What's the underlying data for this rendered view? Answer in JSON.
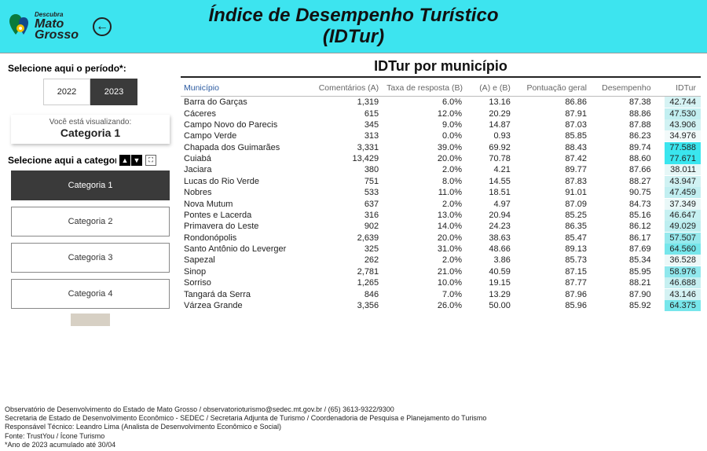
{
  "header": {
    "logo_small": "Descubra",
    "logo_l1": "Mato",
    "logo_l2": "Grosso",
    "title_l1": "Índice de Desempenho Turístico",
    "title_l2": "(IDTur)"
  },
  "sidebar": {
    "period_label": "Selecione aqui o período*:",
    "period_options": [
      "2022",
      "2023"
    ],
    "period_selected": "2023",
    "viewing_label": "Você está visualizando:",
    "viewing_value": "Categoria 1",
    "category_label": "Selecione aqui a categoria:",
    "categories": [
      "Categoria 1",
      "Categoria 2",
      "Categoria 3",
      "Categoria 4"
    ],
    "category_selected": "Categoria 1"
  },
  "table": {
    "title": "IDTur por município",
    "columns": [
      "Município",
      "Comentários (A)",
      "Taxa de resposta (B)",
      "(A) e (B)",
      "Pontuação geral",
      "Desempenho",
      "IDTur"
    ],
    "idtur_color_scale": {
      "min_color": "#e9f8f8",
      "max_color": "#39e6ef"
    },
    "rows": [
      {
        "mun": "Barra do Garças",
        "a": "1,319",
        "b": "6.0%",
        "ab": "13.16",
        "p": "86.86",
        "d": "87.38",
        "i": "42.744",
        "ic": "#d6f3f4"
      },
      {
        "mun": "Cáceres",
        "a": "615",
        "b": "12.0%",
        "ab": "20.29",
        "p": "87.91",
        "d": "88.86",
        "i": "47.530",
        "ic": "#c2eff1"
      },
      {
        "mun": "Campo Novo do Parecis",
        "a": "345",
        "b": "9.0%",
        "ab": "14.87",
        "p": "87.03",
        "d": "87.88",
        "i": "43.906",
        "ic": "#d1f2f3"
      },
      {
        "mun": "Campo Verde",
        "a": "313",
        "b": "0.0%",
        "ab": "0.93",
        "p": "85.85",
        "d": "86.23",
        "i": "34.976",
        "ic": "#f2fafa"
      },
      {
        "mun": "Chapada dos Guimarães",
        "a": "3,331",
        "b": "39.0%",
        "ab": "69.92",
        "p": "88.43",
        "d": "89.74",
        "i": "77.588",
        "ic": "#3be5ee"
      },
      {
        "mun": "Cuiabá",
        "a": "13,429",
        "b": "20.0%",
        "ab": "70.78",
        "p": "87.42",
        "d": "88.60",
        "i": "77.671",
        "ic": "#39e6ef"
      },
      {
        "mun": "Jaciara",
        "a": "380",
        "b": "2.0%",
        "ab": "4.21",
        "p": "89.77",
        "d": "87.66",
        "i": "38.011",
        "ic": "#e6f7f7"
      },
      {
        "mun": "Lucas do Rio Verde",
        "a": "751",
        "b": "8.0%",
        "ab": "14.55",
        "p": "87.83",
        "d": "88.27",
        "i": "43.947",
        "ic": "#d0f2f3"
      },
      {
        "mun": "Nobres",
        "a": "533",
        "b": "11.0%",
        "ab": "18.51",
        "p": "91.01",
        "d": "90.75",
        "i": "47.459",
        "ic": "#c2eff1"
      },
      {
        "mun": "Nova Mutum",
        "a": "637",
        "b": "2.0%",
        "ab": "4.97",
        "p": "87.09",
        "d": "84.73",
        "i": "37.349",
        "ic": "#e9f8f8"
      },
      {
        "mun": "Pontes e Lacerda",
        "a": "316",
        "b": "13.0%",
        "ab": "20.94",
        "p": "85.25",
        "d": "85.16",
        "i": "46.647",
        "ic": "#c6f0f1"
      },
      {
        "mun": "Primavera do Leste",
        "a": "902",
        "b": "14.0%",
        "ab": "24.23",
        "p": "86.35",
        "d": "86.12",
        "i": "49.029",
        "ic": "#bdeef0"
      },
      {
        "mun": "Rondonópolis",
        "a": "2,639",
        "b": "20.0%",
        "ab": "38.63",
        "p": "85.47",
        "d": "86.17",
        "i": "57.507",
        "ic": "#97e9ed"
      },
      {
        "mun": "Santo Antônio do Leverger",
        "a": "325",
        "b": "31.0%",
        "ab": "48.66",
        "p": "89.13",
        "d": "87.69",
        "i": "64.560",
        "ic": "#76e6eb"
      },
      {
        "mun": "Sapezal",
        "a": "262",
        "b": "2.0%",
        "ab": "3.86",
        "p": "85.73",
        "d": "85.34",
        "i": "36.528",
        "ic": "#ecf8f8"
      },
      {
        "mun": "Sinop",
        "a": "2,781",
        "b": "21.0%",
        "ab": "40.59",
        "p": "87.15",
        "d": "85.95",
        "i": "58.976",
        "ic": "#90e8ed"
      },
      {
        "mun": "Sorriso",
        "a": "1,265",
        "b": "10.0%",
        "ab": "19.15",
        "p": "87.77",
        "d": "88.21",
        "i": "46.688",
        "ic": "#c6f0f1"
      },
      {
        "mun": "Tangará da Serra",
        "a": "846",
        "b": "7.0%",
        "ab": "13.29",
        "p": "87.96",
        "d": "87.90",
        "i": "43.146",
        "ic": "#d4f2f3"
      },
      {
        "mun": "Várzea Grande",
        "a": "3,356",
        "b": "26.0%",
        "ab": "50.00",
        "p": "85.96",
        "d": "85.92",
        "i": "64.375",
        "ic": "#77e6eb"
      }
    ]
  },
  "footer": {
    "l1": "Observatório de Desenvolvimento do Estado de Mato Grosso / observatorioturismo@sedec.mt.gov.br / (65) 3613-9322/9300",
    "l2": "Secretaria de Estado de Desenvolvimento Econômico - SEDEC / Secretaria Adjunta de Turismo / Coordenadoria de Pesquisa e Planejamento do Turismo",
    "l3": "Responsável Técnico: Leandro Lima (Analista de Desenvolvimento Econômico e Social)",
    "l4": "Fonte: TrustYou / Ícone Turismo",
    "l5": "*Ano de 2023 acumulado até 30/04"
  }
}
